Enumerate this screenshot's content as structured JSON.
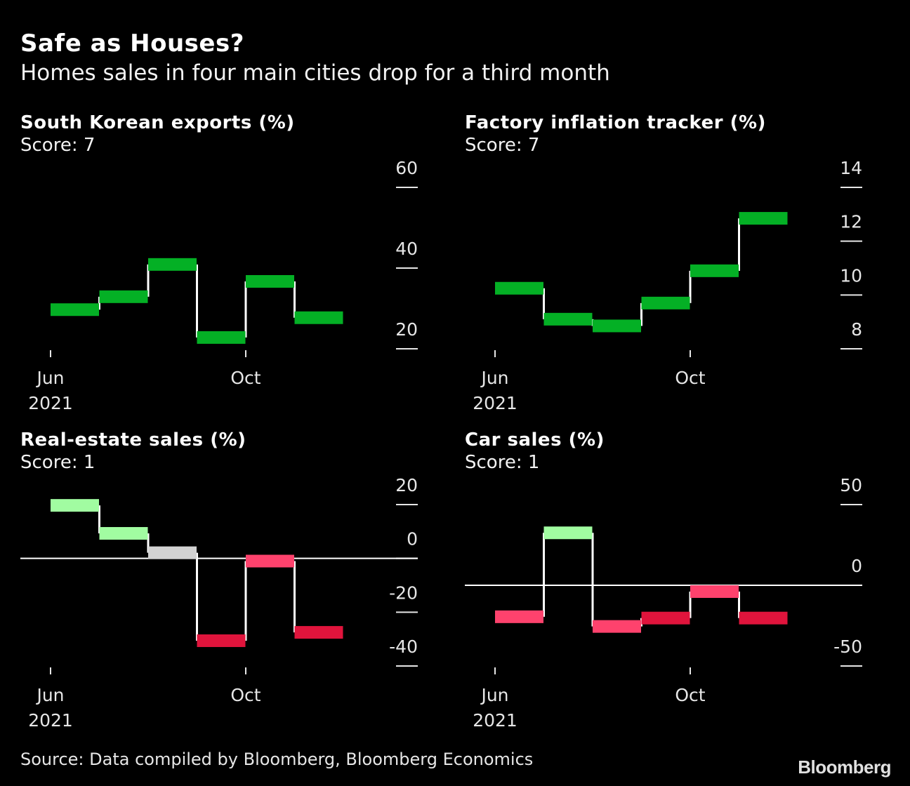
{
  "header": {
    "title": "Safe as Houses?",
    "subtitle": "Homes sales in four main cities drop for a third month"
  },
  "footer": {
    "source": "Source: Data compiled by Bloomberg, Bloomberg Economics",
    "logo": "Bloomberg"
  },
  "colors": {
    "background": "#000000",
    "strong_positive": "#04b025",
    "mild_positive": "#a1fca1",
    "neutral": "#d2d2d2",
    "mild_negative": "#fe426d",
    "strong_negative": "#e0143c",
    "line": "#ffffff"
  },
  "chart_data": [
    {
      "type": "line",
      "style": "step",
      "title": "South Korean exports (%)",
      "score_label": "Score: 7",
      "x": [
        "Jun 2021",
        "Jul 2021",
        "Aug 2021",
        "Sep 2021",
        "Oct 2021",
        "Nov 2021"
      ],
      "values": [
        29.7,
        32.9,
        40.9,
        22.8,
        36.7,
        27.7
      ],
      "bar_colors": [
        "strong_positive",
        "strong_positive",
        "strong_positive",
        "strong_positive",
        "strong_positive",
        "strong_positive"
      ],
      "x_ticks": [
        {
          "label": "Jun",
          "sublabel": "2021",
          "index": 0
        },
        {
          "label": "Oct",
          "sublabel": "",
          "index": 4
        }
      ],
      "y_ticks": [
        20,
        40,
        60
      ],
      "ylim": [
        20,
        60
      ],
      "zero_line": false,
      "axis_position": "right"
    },
    {
      "type": "line",
      "style": "step",
      "title": "Factory inflation tracker (%)",
      "score_label": "Score: 7",
      "x": [
        "Jun 2021",
        "Jul 2021",
        "Aug 2021",
        "Sep 2021",
        "Oct 2021",
        "Nov 2021"
      ],
      "values": [
        10.25,
        9.1,
        8.85,
        9.7,
        10.9,
        12.85
      ],
      "bar_colors": [
        "strong_positive",
        "strong_positive",
        "strong_positive",
        "strong_positive",
        "strong_positive",
        "strong_positive"
      ],
      "x_ticks": [
        {
          "label": "Jun",
          "sublabel": "2021",
          "index": 0
        },
        {
          "label": "Oct",
          "sublabel": "",
          "index": 4
        }
      ],
      "y_ticks": [
        8,
        10,
        12,
        14
      ],
      "ylim": [
        8,
        14
      ],
      "zero_line": false,
      "axis_position": "right"
    },
    {
      "type": "line",
      "style": "step",
      "title": "Real-estate sales (%)",
      "score_label": "Score: 1",
      "x": [
        "Jun 2021",
        "Jul 2021",
        "Aug 2021",
        "Sep 2021",
        "Oct 2021",
        "Nov 2021"
      ],
      "values": [
        19.7,
        9.3,
        2.1,
        -30.6,
        -1.0,
        -27.5
      ],
      "bar_colors": [
        "mild_positive",
        "mild_positive",
        "neutral",
        "strong_negative",
        "mild_negative",
        "strong_negative"
      ],
      "x_ticks": [
        {
          "label": "Jun",
          "sublabel": "2021",
          "index": 0
        },
        {
          "label": "Oct",
          "sublabel": "",
          "index": 4
        }
      ],
      "y_ticks": [
        -40,
        -20,
        0,
        20
      ],
      "ylim": [
        -40,
        20
      ],
      "zero_line": true,
      "axis_position": "right"
    },
    {
      "type": "line",
      "style": "step",
      "title": "Car sales (%)",
      "score_label": "Score: 1",
      "x": [
        "Jun 2021",
        "Jul 2021",
        "Aug 2021",
        "Sep 2021",
        "Oct 2021",
        "Nov 2021"
      ],
      "values": [
        -19.5,
        32.5,
        -25.5,
        -20.3,
        -3.9,
        -20.3
      ],
      "bar_colors": [
        "mild_negative",
        "mild_positive",
        "mild_negative",
        "strong_negative",
        "mild_negative",
        "strong_negative"
      ],
      "x_ticks": [
        {
          "label": "Jun",
          "sublabel": "2021",
          "index": 0
        },
        {
          "label": "Oct",
          "sublabel": "",
          "index": 4
        }
      ],
      "y_ticks": [
        -50,
        0,
        50
      ],
      "ylim": [
        -50,
        50
      ],
      "zero_line": true,
      "axis_position": "right"
    }
  ]
}
